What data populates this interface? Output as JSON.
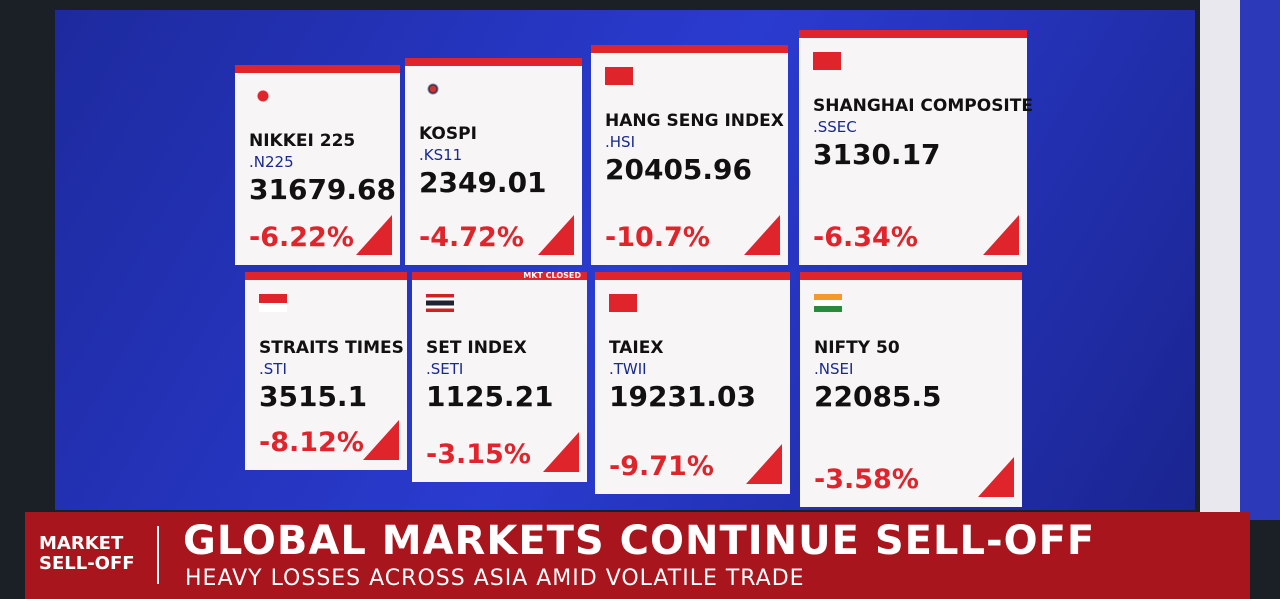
{
  "cards": [
    {
      "name": "NIKKEI 225",
      "ticker": ".N225",
      "value": "31679.68",
      "change": "-6.22%"
    },
    {
      "name": "KOSPI",
      "ticker": ".KS11",
      "value": "2349.01",
      "change": "-4.72%"
    },
    {
      "name": "HANG SENG INDEX",
      "ticker": ".HSI",
      "value": "20405.96",
      "change": "-10.7%"
    },
    {
      "name": "SHANGHAI COMPOSITE",
      "ticker": ".SSEC",
      "value": "3130.17",
      "change": "-6.34%"
    },
    {
      "name": "STRAITS TIMES",
      "ticker": ".STI",
      "value": "3515.1",
      "change": "-8.12%"
    },
    {
      "name": "SET INDEX",
      "ticker": ".SETI",
      "value": "1125.21",
      "change": "-3.15%",
      "note": "MKT CLOSED"
    },
    {
      "name": "TAIEX",
      "ticker": ".TWII",
      "value": "19231.03",
      "change": "-9.71%"
    },
    {
      "name": "NIFTY 50",
      "ticker": ".NSEI",
      "value": "22085.5",
      "change": "-3.58%"
    }
  ],
  "banner": {
    "section": "MARKET SELL-OFF",
    "headline": "GLOBAL MARKETS CONTINUE SELL-OFF",
    "subheadline": "HEAVY LOSSES ACROSS ASIA AMID VOLATILE TRADE"
  }
}
